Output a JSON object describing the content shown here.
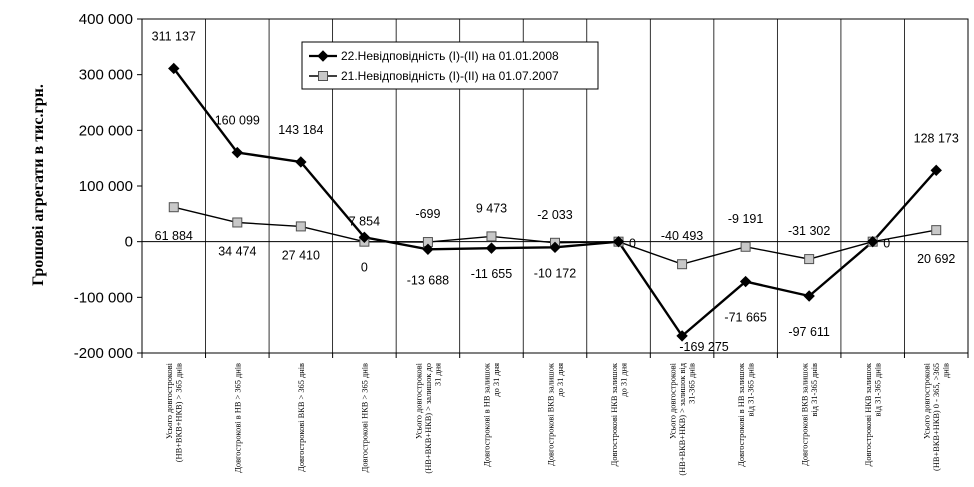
{
  "chart_data": {
    "type": "line",
    "ylabel": "Грошові агрегати в тис.грн.",
    "ylim": [
      -200000,
      400000
    ],
    "yticks": [
      -200000,
      -100000,
      0,
      100000,
      200000,
      300000,
      400000
    ],
    "ytick_labels": [
      "-200 000",
      "-100 000",
      "0",
      "100 000",
      "200 000",
      "300 000",
      "400 000"
    ],
    "grid": "vertical category lines and horizontal zero line",
    "legend_position": "top-center",
    "categories": [
      [
        "Усього довгострокові",
        "(НВ+ВКВ+НКВ) > 365 днів"
      ],
      [
        "Довгострокові в НВ > 365 днів"
      ],
      [
        "Довгострокові ВКВ > 365 днів"
      ],
      [
        "Довгострокові НКВ > 365 днів"
      ],
      [
        "Усього довгострокові",
        "(НВ+ВКВ+НКВ) > залишок до",
        "31 дня"
      ],
      [
        "Довгострокові в НВ залишок",
        "до 31 дня"
      ],
      [
        "Довгострокові ВКВ залишок",
        "до 31 дня"
      ],
      [
        "Довгострокові НКВ залишок",
        "до 31 дня"
      ],
      [
        "Усього довгострокові",
        "(НВ+ВКВ+НКВ) > залишок від",
        "31-365 днів"
      ],
      [
        "Довгострокові в НВ залишок",
        "від 31-365 днів"
      ],
      [
        "Довгострокові ВКВ залишок",
        "від 31-365 днів"
      ],
      [
        "Довгострокові НКВ залишок",
        "від 31-365 днів"
      ],
      [
        "Усього довгострокові",
        "(НВ+ВКВ+НКВ) 0 - 365, >365",
        "днів"
      ]
    ],
    "series": [
      {
        "name": "22.Невідповідність (І)-(ІІ) на 01.01.2008",
        "marker": "diamond",
        "color": "#000000",
        "values": [
          311137,
          160099,
          143184,
          7854,
          -13688,
          -11655,
          -10172,
          0,
          -169275,
          -71665,
          -97611,
          0,
          128173
        ],
        "labels": [
          "311 137",
          "160 099",
          "143 184",
          "7 854",
          "-13 688",
          "-11 655",
          "-10 172",
          "0",
          "-169 275",
          "-71 665",
          "-97 611",
          "0",
          "128 173"
        ]
      },
      {
        "name": "21.Невідповідність (І)-(ІІ) на 01.07.2007",
        "marker": "square",
        "color": "#666666",
        "values": [
          61884,
          34474,
          27410,
          0,
          -699,
          9473,
          -2033,
          0,
          -40493,
          -9191,
          -31302,
          0,
          20692
        ],
        "labels": [
          "61 884",
          "34 474",
          "27 410",
          "0",
          "-699",
          "9 473",
          "-2 033",
          "0",
          "-40 493",
          "-9 191",
          "-31 302",
          "0",
          "20 692"
        ]
      }
    ]
  }
}
